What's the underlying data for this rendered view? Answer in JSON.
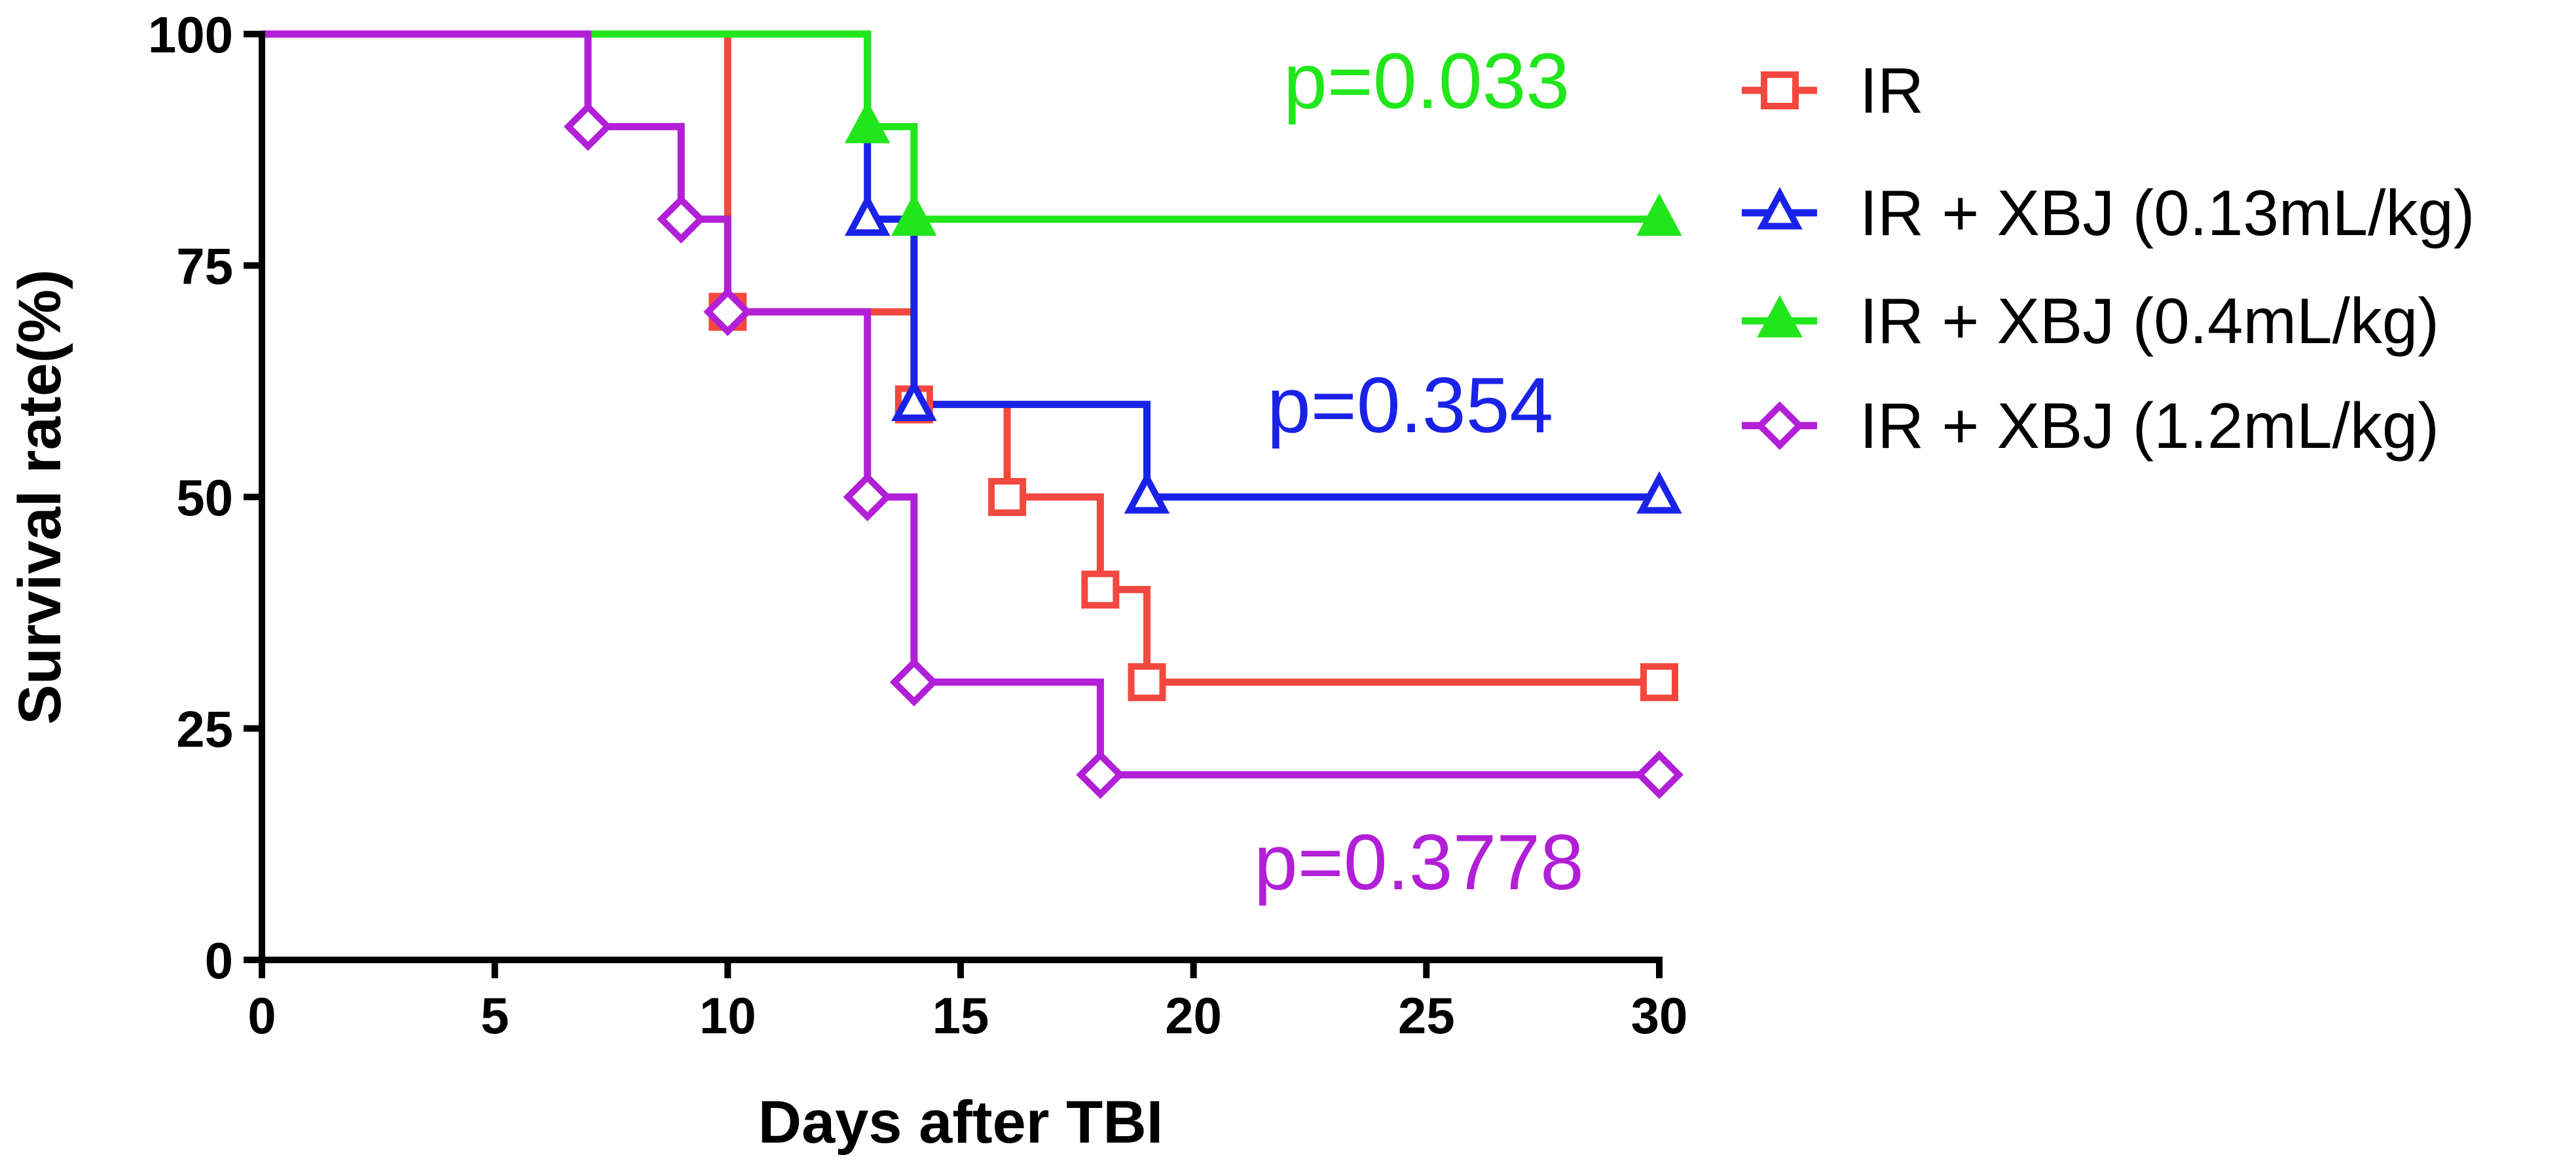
{
  "chart_data": {
    "type": "line",
    "subtype": "kaplan-meier-step",
    "xlabel": "Days after TBI",
    "ylabel": "Survival rate(%)",
    "xlim": [
      0,
      30
    ],
    "ylim": [
      0,
      100
    ],
    "x_ticks": [
      0,
      5,
      10,
      15,
      20,
      25,
      30
    ],
    "y_ticks": [
      0,
      25,
      50,
      75,
      100
    ],
    "x_tick_labels": [
      "0",
      "5",
      "10",
      "15",
      "20",
      "25",
      "30"
    ],
    "y_tick_labels": [
      "0",
      "25",
      "50",
      "75",
      "100"
    ],
    "legend_position": "top-right",
    "series": [
      {
        "name": "IR",
        "color": "#f2483f",
        "marker": "open-square",
        "points": [
          [
            0,
            100
          ],
          [
            10,
            70
          ],
          [
            14,
            60
          ],
          [
            16,
            50
          ],
          [
            18,
            40
          ],
          [
            19,
            30
          ],
          [
            30,
            30
          ]
        ],
        "p_value": ""
      },
      {
        "name": "IR + XBJ (0.13mL/kg)",
        "color": "#1a22e8",
        "marker": "open-triangle",
        "points": [
          [
            0,
            100
          ],
          [
            13,
            80
          ],
          [
            14,
            60
          ],
          [
            19,
            50
          ],
          [
            30,
            50
          ]
        ],
        "p_value": "p=0.354"
      },
      {
        "name": "IR + XBJ (0.4mL/kg)",
        "color": "#22e61c",
        "marker": "filled-triangle",
        "points": [
          [
            0,
            100
          ],
          [
            13,
            90
          ],
          [
            14,
            80
          ],
          [
            30,
            80
          ]
        ],
        "p_value": "p=0.033"
      },
      {
        "name": "IR + XBJ (1.2mL/kg)",
        "color": "#b11fd6",
        "marker": "open-diamond",
        "points": [
          [
            0,
            100
          ],
          [
            7,
            90
          ],
          [
            9,
            80
          ],
          [
            10,
            70
          ],
          [
            13,
            50
          ],
          [
            14,
            30
          ],
          [
            18,
            20
          ],
          [
            30,
            20
          ]
        ],
        "p_value": "p=0.3778"
      }
    ]
  }
}
